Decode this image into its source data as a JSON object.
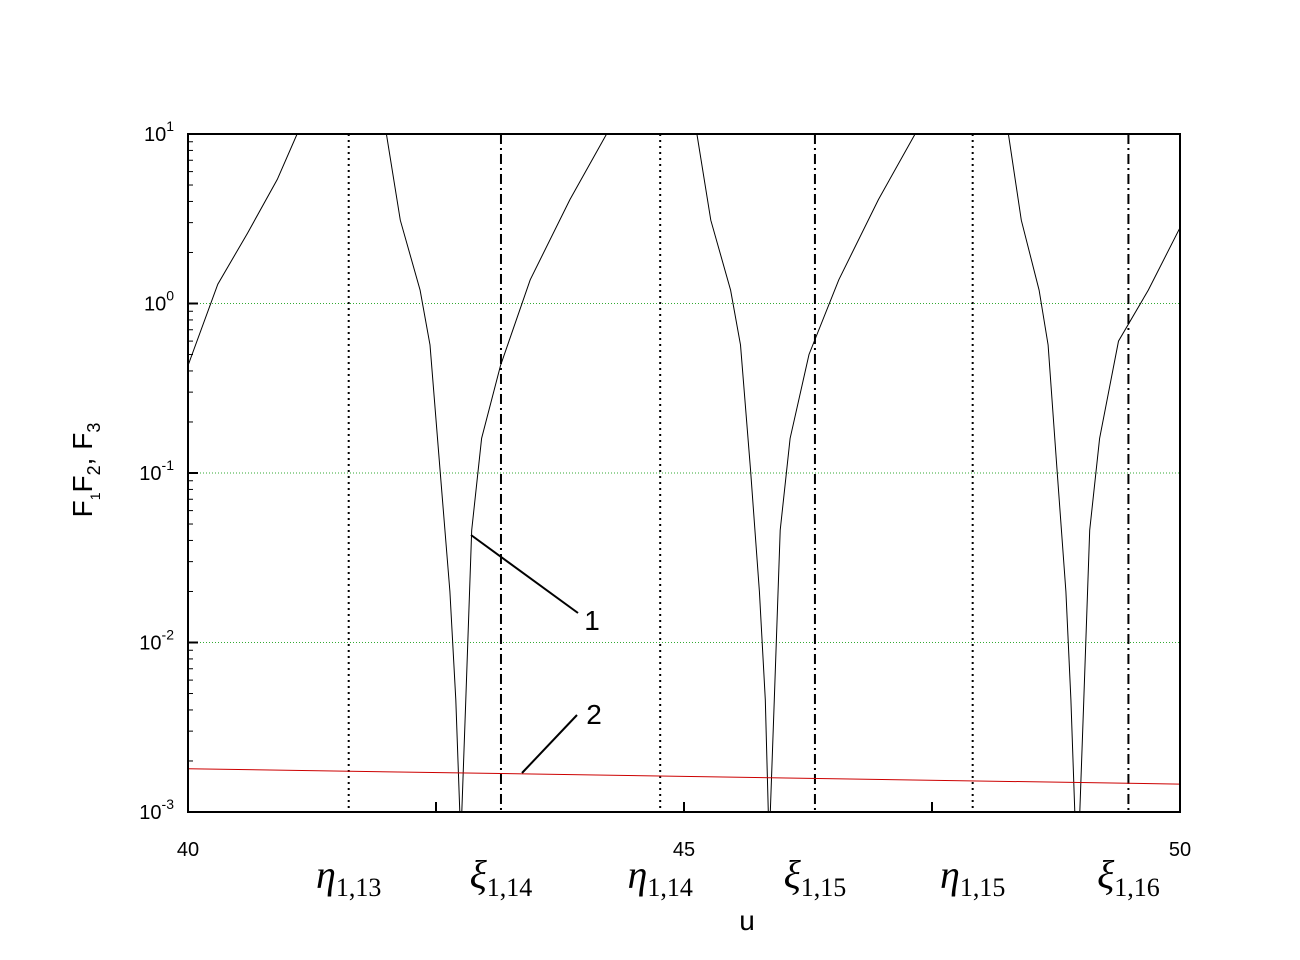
{
  "chart_data": {
    "type": "line",
    "xlabel": "u",
    "ylabel_parts": [
      {
        "text": "F",
        "sub": "1"
      },
      {
        "text": "F",
        "sub": "2"
      },
      {
        "text": ", F",
        "sub": "3"
      }
    ],
    "xlim": [
      40,
      50
    ],
    "xticks": [
      40,
      45,
      50
    ],
    "xminor_ticks": [
      42.5,
      47.5
    ],
    "ylim": [
      0.001,
      10
    ],
    "log_y": true,
    "yticks": [
      {
        "value": 0.001,
        "label": "10",
        "exponent": "-3"
      },
      {
        "value": 0.01,
        "label": "10",
        "exponent": "-2"
      },
      {
        "value": 0.1,
        "label": "10",
        "exponent": "-1"
      },
      {
        "value": 1,
        "label": "10",
        "exponent": "0"
      },
      {
        "value": 10,
        "label": "10",
        "exponent": "1"
      }
    ],
    "grid": true,
    "grid_color": "#33aa33",
    "series": [
      {
        "name": "1",
        "color": "#000000",
        "x": [
          40,
          40.3,
          40.6,
          40.9,
          41.1,
          41.5,
          42.0,
          42.14,
          42.34,
          42.44,
          42.54,
          42.64,
          42.7,
          42.74,
          42.75,
          42.76,
          42.8,
          42.86,
          42.96,
          43.15,
          43.45,
          43.85,
          44.22,
          44.7,
          45.13,
          45.27,
          45.47,
          45.57,
          45.67,
          45.76,
          45.82,
          45.85,
          45.86,
          45.87,
          45.91,
          45.97,
          46.07,
          46.26,
          46.56,
          46.96,
          47.33,
          47.8,
          48.27,
          48.4,
          48.58,
          48.67,
          48.76,
          48.85,
          48.9,
          48.94,
          48.96,
          48.99,
          49.03,
          49.09,
          49.19,
          49.38,
          49.68,
          50.0
        ],
        "values": [
          0.43,
          1.3,
          2.6,
          5.4,
          10,
          null,
          10,
          3.1,
          1.2,
          0.57,
          0.105,
          0.02,
          0.0046,
          0.001,
          null,
          0.001,
          0.0046,
          0.046,
          0.16,
          0.43,
          1.38,
          4.1,
          10,
          null,
          10,
          3.1,
          1.2,
          0.57,
          0.105,
          0.02,
          0.0046,
          0.001,
          null,
          0.001,
          0.0046,
          0.046,
          0.16,
          0.5,
          1.38,
          4.1,
          10,
          null,
          10,
          3.1,
          1.2,
          0.57,
          0.105,
          0.02,
          0.0046,
          0.001,
          null,
          0.001,
          0.0046,
          0.046,
          0.16,
          0.6,
          1.2,
          2.8
        ]
      },
      {
        "name": "2",
        "color": "#cc0000",
        "x": [
          40,
          50
        ],
        "values": [
          0.0018,
          0.00146
        ]
      }
    ],
    "vlines": [
      {
        "x": 41.62,
        "style": "dotted",
        "symbol": "η",
        "sub": "1,13"
      },
      {
        "x": 43.155,
        "style": "dashdot",
        "symbol": "ξ",
        "sub": "1,14"
      },
      {
        "x": 44.76,
        "style": "dotted",
        "symbol": "η",
        "sub": "1,14"
      },
      {
        "x": 46.32,
        "style": "dashdot",
        "symbol": "ξ",
        "sub": "1,15"
      },
      {
        "x": 47.91,
        "style": "dotted",
        "symbol": "η",
        "sub": "1,15"
      },
      {
        "x": 49.48,
        "style": "dashdot",
        "symbol": "ξ",
        "sub": "1,16"
      }
    ]
  }
}
